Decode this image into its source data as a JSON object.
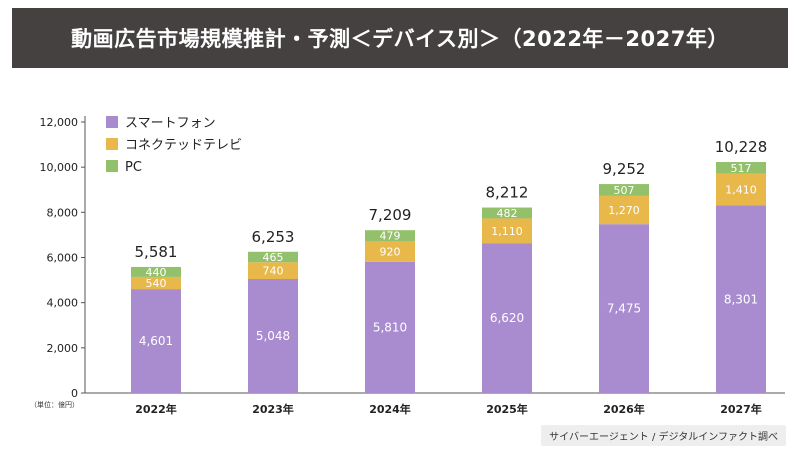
{
  "header": {
    "title": "動画広告市場規模推計・予測＜デバイス別＞（2022年－2027年）"
  },
  "unit_label": "（単位：億円）",
  "source": "サイバーエージェント / デジタルインファクト調べ",
  "colors": {
    "smartphone": "#a98bd0",
    "connected_tv": "#e8b84a",
    "pc": "#93c06a",
    "title_bg": "#454140"
  },
  "chart_data": {
    "type": "bar",
    "stacked": true,
    "title": "動画広告市場規模推計・予測＜デバイス別＞（2022年－2027年）",
    "categories": [
      "2022年",
      "2023年",
      "2024年",
      "2025年",
      "2026年",
      "2027年"
    ],
    "series": [
      {
        "name": "スマートフォン",
        "color": "#a98bd0",
        "values": [
          4601,
          5048,
          5810,
          6620,
          7475,
          8301
        ]
      },
      {
        "name": "コネクテッドテレビ",
        "color": "#e8b84a",
        "values": [
          540,
          740,
          920,
          1110,
          1270,
          1410
        ]
      },
      {
        "name": "PC",
        "color": "#93c06a",
        "values": [
          440,
          465,
          479,
          482,
          507,
          517
        ]
      }
    ],
    "value_labels": [
      [
        "4,601",
        "5,048",
        "5,810",
        "6,620",
        "7,475",
        "8,301"
      ],
      [
        "540",
        "740",
        "920",
        "1,110",
        "1,270",
        "1,410"
      ],
      [
        "440",
        "465",
        "479",
        "482",
        "507",
        "517"
      ]
    ],
    "totals": [
      "5,581",
      "6,253",
      "7,209",
      "8,212",
      "9,252",
      "10,228"
    ],
    "ylim": [
      0,
      12000
    ],
    "yticks": [
      0,
      2000,
      4000,
      6000,
      8000,
      10000,
      12000
    ],
    "ytick_labels": [
      "0",
      "2,000",
      "4,000",
      "6,000",
      "8,000",
      "10,000",
      "12,000"
    ],
    "xlabel": "",
    "ylabel": "",
    "grid": false,
    "legend_position": "top-left"
  }
}
